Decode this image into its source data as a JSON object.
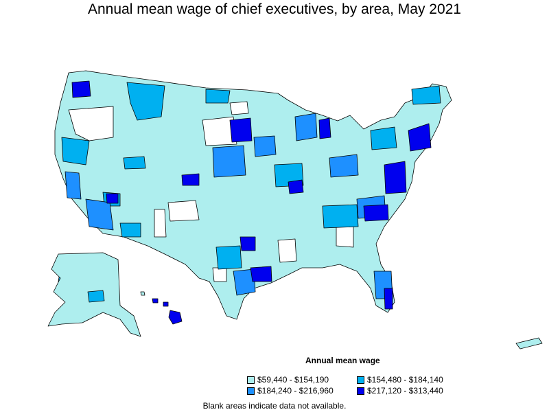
{
  "title": "Annual mean wage of chief executives, by area, May 2021",
  "legend": {
    "title": "Annual mean wage",
    "items": [
      {
        "label": "$59,440 - $154,190",
        "color": "#aeeeee"
      },
      {
        "label": "$154,480 - $184,140",
        "color": "#00b0f0"
      },
      {
        "label": "$184,240 - $216,960",
        "color": "#1e90ff"
      },
      {
        "label": "$217,120 - $313,440",
        "color": "#0000ee"
      }
    ]
  },
  "note": "Blank areas indicate data not available."
}
